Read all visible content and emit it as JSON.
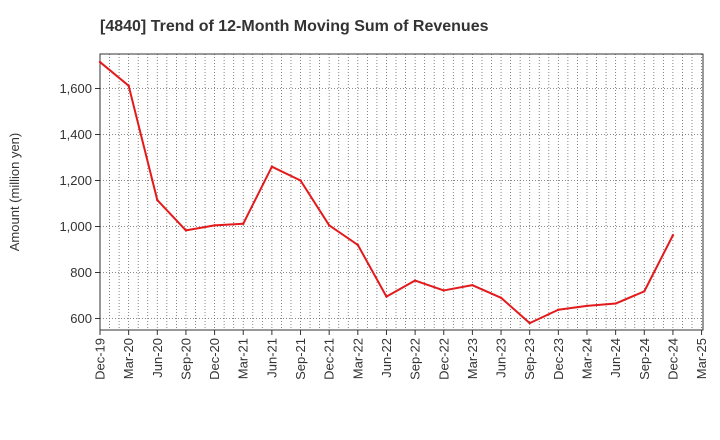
{
  "chart_data": {
    "type": "line",
    "title": "[4840]  Trend of 12-Month Moving Sum of Revenues",
    "xlabel": "",
    "ylabel": "Amount (million yen)",
    "ylim": [
      550,
      1750
    ],
    "yticks": [
      600,
      800,
      1000,
      1200,
      1400,
      1600
    ],
    "ytick_labels": [
      "600",
      "800",
      "1,000",
      "1,200",
      "1,400",
      "1,600"
    ],
    "xtick_labels": [
      "Dec-19",
      "Mar-20",
      "Jun-20",
      "Sep-20",
      "Dec-20",
      "Mar-21",
      "Jun-21",
      "Sep-21",
      "Dec-21",
      "Mar-22",
      "Jun-22",
      "Sep-22",
      "Dec-22",
      "Mar-23",
      "Jun-23",
      "Sep-23",
      "Dec-23",
      "Mar-24",
      "Jun-24",
      "Sep-24",
      "Dec-24",
      "Mar-25"
    ],
    "grid": true,
    "line_color": "#e31a1c",
    "series": [
      {
        "x": [
          "Dec-19",
          "Mar-20",
          "Jun-20",
          "Sep-20",
          "Dec-20",
          "Mar-21",
          "Jun-21",
          "Sep-21",
          "Dec-21",
          "Mar-22",
          "Jun-22",
          "Sep-22",
          "Dec-22",
          "Mar-23",
          "Jun-23",
          "Sep-23",
          "Dec-23",
          "Mar-24",
          "Jun-24",
          "Sep-24",
          "Dec-24"
        ],
        "values": [
          1715,
          1612,
          1115,
          983,
          1005,
          1012,
          1260,
          1200,
          1005,
          920,
          695,
          765,
          722,
          745,
          690,
          580,
          638,
          655,
          665,
          718,
          962
        ]
      }
    ]
  }
}
